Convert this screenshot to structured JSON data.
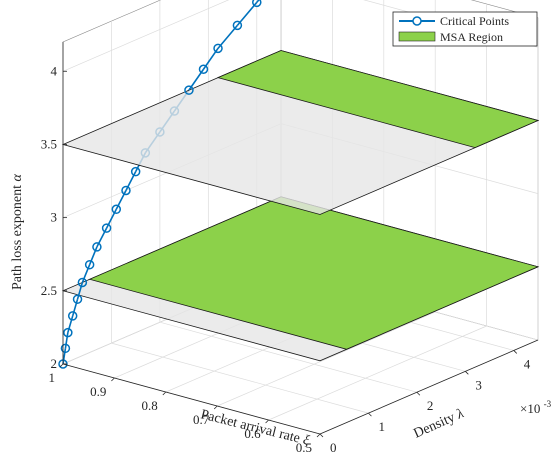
{
  "chart_data": {
    "type": "line",
    "view": "3d",
    "axes": {
      "x": {
        "label_text": "Packet arrival rate",
        "label_symbol": "ξ",
        "range": [
          0.5,
          1.0
        ],
        "ticks": [
          {
            "value": 1.0,
            "label": "1"
          },
          {
            "value": 0.9,
            "label": "0.9"
          },
          {
            "value": 0.8,
            "label": "0.8"
          },
          {
            "value": 0.7,
            "label": "0.7"
          },
          {
            "value": 0.6,
            "label": "0.6"
          },
          {
            "value": 0.5,
            "label": "0.5"
          }
        ]
      },
      "y": {
        "label_text": "Density",
        "label_symbol": "λ",
        "range": [
          0,
          0.0045
        ],
        "multiplier": "×10",
        "exponent": "-3",
        "ticks": [
          {
            "value": 0,
            "label": "0"
          },
          {
            "value": 0.001,
            "label": "1"
          },
          {
            "value": 0.002,
            "label": "2"
          },
          {
            "value": 0.003,
            "label": "3"
          },
          {
            "value": 0.004,
            "label": "4"
          }
        ]
      },
      "z": {
        "label_text": "Path loss exponent",
        "label_symbol": "α",
        "range": [
          2,
          4.2
        ],
        "ticks": [
          {
            "value": 2,
            "label": "2"
          },
          {
            "value": 2.5,
            "label": "2.5"
          },
          {
            "value": 3,
            "label": "3"
          },
          {
            "value": 3.5,
            "label": "3.5"
          },
          {
            "value": 4,
            "label": "4"
          }
        ]
      }
    },
    "grid": true,
    "legend": {
      "position": "top-right",
      "entries": [
        {
          "label": "Critical Points",
          "color": "#0072bd",
          "marker": "circle"
        },
        {
          "label": "MSA Region",
          "color": "#8cd14a",
          "marker": "patch"
        }
      ]
    },
    "series": [
      {
        "name": "Critical Points",
        "color": "#0072bd",
        "points": [
          {
            "x": 1.0,
            "y": 0.0,
            "z": 2.0
          },
          {
            "x": 1.0,
            "y": 5e-05,
            "z": 2.1
          },
          {
            "x": 1.0,
            "y": 0.0001,
            "z": 2.2
          },
          {
            "x": 1.0,
            "y": 0.0002,
            "z": 2.3
          },
          {
            "x": 1.0,
            "y": 0.0003,
            "z": 2.4
          },
          {
            "x": 1.0,
            "y": 0.0004,
            "z": 2.5
          },
          {
            "x": 1.0,
            "y": 0.00055,
            "z": 2.6
          },
          {
            "x": 1.0,
            "y": 0.0007,
            "z": 2.7
          },
          {
            "x": 1.0,
            "y": 0.0009,
            "z": 2.8
          },
          {
            "x": 1.0,
            "y": 0.0011,
            "z": 2.9
          },
          {
            "x": 1.0,
            "y": 0.0013,
            "z": 3.0
          },
          {
            "x": 1.0,
            "y": 0.0015,
            "z": 3.1
          },
          {
            "x": 1.0,
            "y": 0.0017,
            "z": 3.2
          },
          {
            "x": 1.0,
            "y": 0.002,
            "z": 3.3
          },
          {
            "x": 1.0,
            "y": 0.0023,
            "z": 3.4
          },
          {
            "x": 1.0,
            "y": 0.0026,
            "z": 3.5
          },
          {
            "x": 1.0,
            "y": 0.0029,
            "z": 3.6
          },
          {
            "x": 1.0,
            "y": 0.0032,
            "z": 3.7
          },
          {
            "x": 1.0,
            "y": 0.0036,
            "z": 3.8
          },
          {
            "x": 1.0,
            "y": 0.004,
            "z": 3.9
          },
          {
            "x": 1.0,
            "y": 0.0044,
            "z": 4.0
          }
        ]
      }
    ],
    "planes": [
      {
        "kind": "gray",
        "z": 2.5,
        "x_range": [
          0.5,
          1.0
        ],
        "y_range": [
          0,
          0.0045
        ],
        "color": "#e6e6e6"
      },
      {
        "kind": "gray",
        "z": 3.5,
        "x_range": [
          0.5,
          1.0
        ],
        "y_range": [
          0,
          0.0045
        ],
        "color": "#e6e6e6"
      },
      {
        "kind": "msa",
        "z": 2.5,
        "x_range": [
          0.5,
          1.0
        ],
        "y_range": [
          0.00055,
          0.0045
        ],
        "color": "#8cd14a"
      },
      {
        "kind": "msa",
        "z": 3.5,
        "x_range": [
          0.5,
          1.0
        ],
        "y_range": [
          0.0032,
          0.0045
        ],
        "color": "#8cd14a"
      }
    ]
  }
}
